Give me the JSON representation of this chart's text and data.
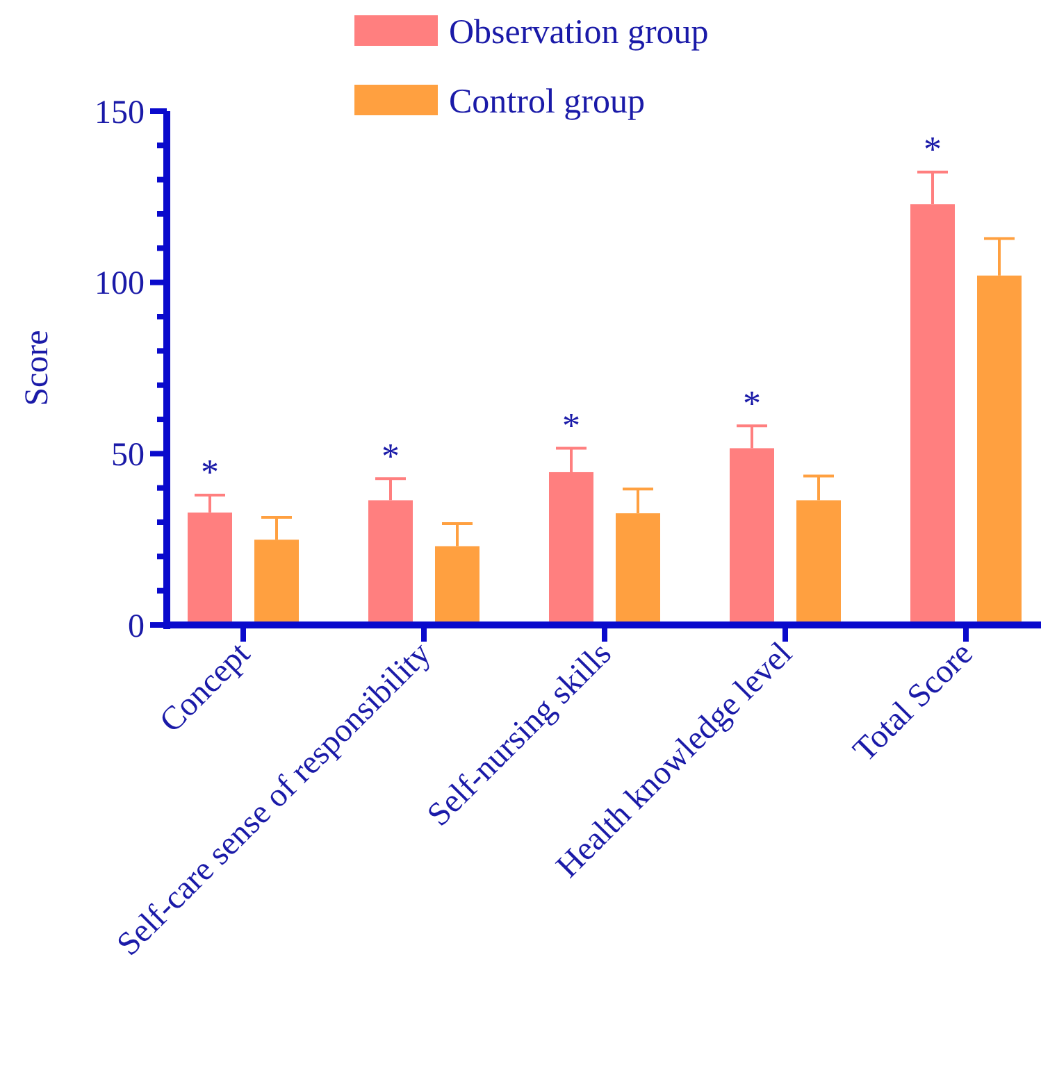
{
  "chart_data": {
    "type": "bar",
    "ylabel": "Score",
    "categories": [
      "Concept",
      "Self-care sense of responsibility",
      "Self-nursing skills",
      "Health knowledge level",
      "Total Score"
    ],
    "series": [
      {
        "name": "Observation group",
        "color": "#ff7f7f",
        "values": [
          32.8,
          36.4,
          44.6,
          51.6,
          122.8
        ],
        "errors": [
          [
            32.8,
            37.9
          ],
          [
            36.4,
            42.7
          ],
          [
            44.6,
            51.6
          ],
          [
            51.6,
            58.1
          ],
          [
            122.8,
            132.2
          ]
        ]
      },
      {
        "name": "Control group",
        "color": "#ffa040",
        "values": [
          24.9,
          23.0,
          32.6,
          36.4,
          102.0
        ],
        "errors": [
          [
            24.9,
            31.4
          ],
          [
            23.0,
            29.6
          ],
          [
            32.6,
            39.7
          ],
          [
            36.4,
            43.5
          ],
          [
            102.0,
            112.8
          ]
        ]
      }
    ],
    "ylim": [
      0,
      150
    ],
    "yticks": [
      0,
      {
        "value": 10,
        "label": null
      },
      {
        "value": 20,
        "label": null
      },
      {
        "value": 30,
        "label": null
      },
      {
        "value": 40,
        "label": null
      },
      50,
      {
        "value": 60,
        "label": null
      },
      {
        "value": 70,
        "label": null
      },
      {
        "value": 80,
        "label": null
      },
      {
        "value": 90,
        "label": null
      },
      100,
      {
        "value": 110,
        "label": null
      },
      {
        "value": 120,
        "label": null
      },
      {
        "value": 130,
        "label": null
      },
      {
        "value": 140,
        "label": null
      },
      150
    ],
    "annotations": [
      "*",
      "*",
      "*",
      "*",
      "*"
    ],
    "legend": "top",
    "grid": false
  }
}
